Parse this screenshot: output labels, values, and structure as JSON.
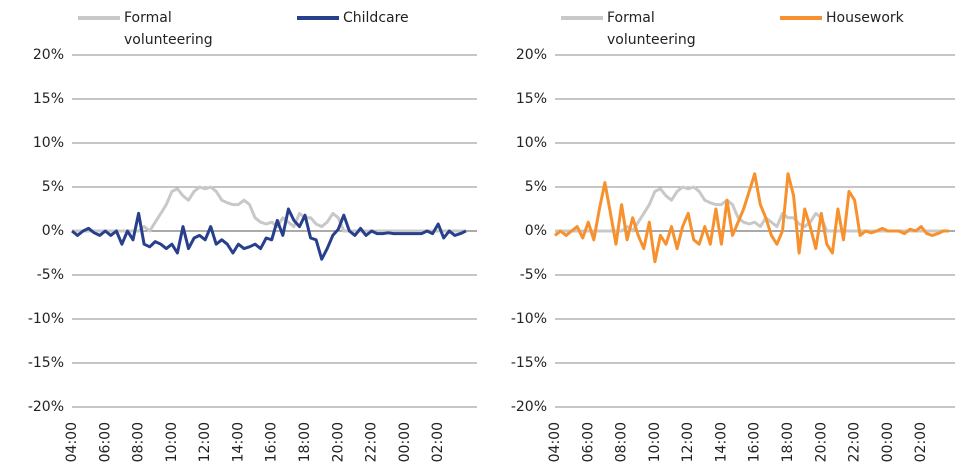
{
  "chart_data": [
    {
      "type": "line",
      "categories": [
        "04:00",
        null,
        null,
        null,
        null,
        null,
        "06:00",
        null,
        null,
        null,
        null,
        null,
        "08:00",
        null,
        null,
        null,
        null,
        null,
        "10:00",
        null,
        null,
        null,
        null,
        null,
        "12:00",
        null,
        null,
        null,
        null,
        null,
        "14:00",
        null,
        null,
        null,
        null,
        null,
        "16:00",
        null,
        null,
        null,
        null,
        null,
        "18:00",
        null,
        null,
        null,
        null,
        null,
        "20:00",
        null,
        null,
        null,
        null,
        null,
        "22:00",
        null,
        null,
        null,
        null,
        null,
        "00:00",
        null,
        null,
        null,
        null,
        null,
        "02:00",
        null,
        null,
        null,
        null,
        null
      ],
      "series": [
        {
          "name": "Formal volunteering",
          "color": "#c8c8c8",
          "values": [
            0,
            0,
            0,
            0,
            0,
            0,
            0,
            0,
            0,
            0,
            0,
            0,
            0,
            0.5,
            0,
            1,
            2,
            3,
            4.5,
            4.8,
            4,
            3.5,
            4.5,
            5,
            4.8,
            5,
            4.5,
            3.5,
            3.2,
            3,
            3,
            3.5,
            3,
            1.5,
            1,
            0.8,
            1,
            0.5,
            1.5,
            1,
            0.5,
            2,
            1.5,
            1.5,
            0.8,
            0.5,
            1,
            2,
            1.5,
            0,
            0,
            0,
            0,
            0,
            0,
            0,
            0,
            0,
            0,
            0,
            0,
            0,
            0,
            0,
            0,
            0,
            0,
            0,
            0,
            0,
            0,
            0
          ]
        },
        {
          "name": "Childcare",
          "color": "#283f8c",
          "values": [
            0,
            -0.5,
            0,
            0.3,
            -0.2,
            -0.5,
            0,
            -0.5,
            0,
            -1.5,
            0,
            -1,
            2,
            -1.5,
            -1.8,
            -1.2,
            -1.5,
            -2,
            -1.5,
            -2.5,
            0.5,
            -2,
            -0.8,
            -0.5,
            -1,
            0.5,
            -1.5,
            -1,
            -1.5,
            -2.5,
            -1.5,
            -2,
            -1.8,
            -1.5,
            -2,
            -0.8,
            -1,
            1.2,
            -0.5,
            2.5,
            1.2,
            0.5,
            1.8,
            -0.8,
            -1,
            -3.2,
            -2,
            -0.5,
            0.2,
            1.8,
            0,
            -0.5,
            0.3,
            -0.5,
            0,
            -0.3,
            -0.3,
            -0.2,
            -0.3,
            -0.3,
            -0.3,
            -0.3,
            -0.3,
            -0.3,
            0,
            -0.3,
            0.8,
            -0.8,
            0,
            -0.5,
            -0.3,
            0
          ]
        }
      ],
      "ylim": [
        -20,
        20
      ],
      "yticks": [
        {
          "value": -20,
          "label": "-20%"
        },
        {
          "value": -15,
          "label": "-15%"
        },
        {
          "value": -10,
          "label": "-10%"
        },
        {
          "value": -5,
          "label": "-5%"
        },
        {
          "value": 0,
          "label": "0%"
        },
        {
          "value": 5,
          "label": "5%"
        },
        {
          "value": 10,
          "label": "10%"
        },
        {
          "value": 15,
          "label": "15%"
        },
        {
          "value": 20,
          "label": "20%"
        }
      ],
      "grid": true
    },
    {
      "type": "line",
      "categories": [
        "04:00",
        null,
        null,
        null,
        null,
        null,
        "06:00",
        null,
        null,
        null,
        null,
        null,
        "08:00",
        null,
        null,
        null,
        null,
        null,
        "10:00",
        null,
        null,
        null,
        null,
        null,
        "12:00",
        null,
        null,
        null,
        null,
        null,
        "14:00",
        null,
        null,
        null,
        null,
        null,
        "16:00",
        null,
        null,
        null,
        null,
        null,
        "18:00",
        null,
        null,
        null,
        null,
        null,
        "20:00",
        null,
        null,
        null,
        null,
        null,
        "22:00",
        null,
        null,
        null,
        null,
        null,
        "00:00",
        null,
        null,
        null,
        null,
        null,
        "02:00",
        null,
        null,
        null,
        null,
        null
      ],
      "series": [
        {
          "name": "Formal volunteering",
          "color": "#c8c8c8",
          "values": [
            0,
            0,
            0,
            0,
            0,
            0,
            0,
            0,
            0,
            0,
            0,
            0,
            0,
            0.5,
            0,
            1,
            2,
            3,
            4.5,
            4.8,
            4,
            3.5,
            4.5,
            5,
            4.8,
            5,
            4.5,
            3.5,
            3.2,
            3,
            3,
            3.5,
            3,
            1.5,
            1,
            0.8,
            1,
            0.5,
            1.5,
            1,
            0.5,
            2,
            1.5,
            1.5,
            0.8,
            0.5,
            1,
            2,
            1.5,
            0,
            0,
            0,
            0,
            0,
            0,
            0,
            0,
            0,
            0,
            0,
            0,
            0,
            0,
            0,
            0,
            0,
            0,
            0,
            0,
            0,
            0,
            0
          ]
        },
        {
          "name": "Housework",
          "color": "#f7912d",
          "values": [
            -0.5,
            0,
            -0.5,
            0,
            0.5,
            -0.8,
            1,
            -1,
            2.5,
            5.5,
            2,
            -1.5,
            3,
            -1,
            1.5,
            -0.5,
            -2,
            1,
            -3.5,
            -0.5,
            -1.5,
            0.5,
            -2,
            0.5,
            2,
            -1,
            -1.5,
            0.5,
            -1.5,
            2.5,
            -1.5,
            3.5,
            -0.5,
            1,
            2.5,
            4.5,
            6.5,
            3,
            1.5,
            -0.5,
            -1.5,
            0,
            6.5,
            4,
            -2.5,
            2.5,
            0.5,
            -2,
            2,
            -1.5,
            -2.5,
            2.5,
            -1,
            4.5,
            3.5,
            -0.5,
            0,
            -0.2,
            0,
            0.3,
            0,
            0,
            0,
            -0.3,
            0.2,
            0,
            0.5,
            -0.3,
            -0.5,
            -0.3,
            0,
            0
          ]
        }
      ],
      "ylim": [
        -20,
        20
      ],
      "yticks": [
        {
          "value": -20,
          "label": "-20%"
        },
        {
          "value": -15,
          "label": "-15%"
        },
        {
          "value": -10,
          "label": "-10%"
        },
        {
          "value": -5,
          "label": "-5%"
        },
        {
          "value": 0,
          "label": "0%"
        },
        {
          "value": 5,
          "label": "5%"
        },
        {
          "value": 10,
          "label": "10%"
        },
        {
          "value": 15,
          "label": "15%"
        },
        {
          "value": 20,
          "label": "20%"
        }
      ],
      "grid": true
    }
  ]
}
